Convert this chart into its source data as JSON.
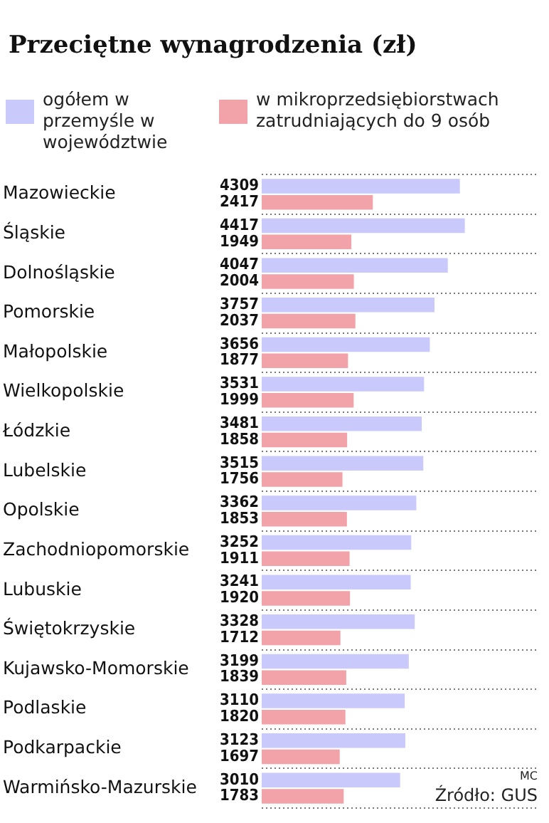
{
  "chart_data": {
    "type": "bar",
    "orientation": "horizontal",
    "title": "Przeciętne wynagrodzenia (zł)",
    "categories": [
      "Mazowieckie",
      "Śląskie",
      "Dolnośląskie",
      "Pomorskie",
      "Małopolskie",
      "Wielkopolskie",
      "Łódzkie",
      "Lubelskie",
      "Opolskie",
      "Zachodniopomorskie",
      "Lubuskie",
      "Świętokrzyskie",
      "Kujawsko-Momorskie",
      "Podlaskie",
      "Podkarpackie",
      "Warmińsko-Mazurskie"
    ],
    "series": [
      {
        "name": "ogółem w przemyśle w województwie",
        "color": "#c9c9fb",
        "values": [
          4309,
          4417,
          4047,
          3757,
          3656,
          3531,
          3481,
          3515,
          3362,
          3252,
          3241,
          3328,
          3199,
          3110,
          3123,
          3010
        ]
      },
      {
        "name": "w mikroprzedsiębiorstwach zatrudniających do 9 osób",
        "color": "#f2a3aa",
        "values": [
          2417,
          1949,
          2004,
          2037,
          1877,
          1999,
          1858,
          1756,
          1853,
          1911,
          1920,
          1712,
          1839,
          1820,
          1697,
          1783
        ]
      }
    ],
    "data_labels": true,
    "grid": "y",
    "legend": "top left",
    "tick_labels": "y",
    "annotations": [
      "MC",
      "Źródło: GUS"
    ]
  }
}
